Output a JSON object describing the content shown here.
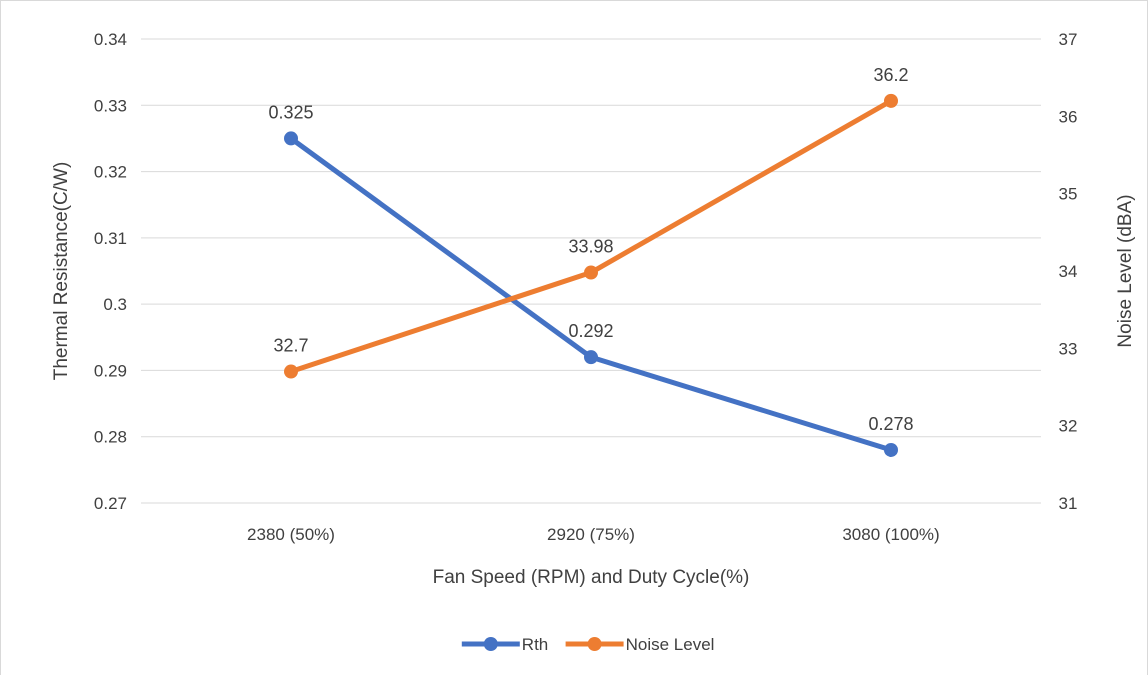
{
  "chart_data": {
    "type": "line",
    "categories": [
      "2380 (50%)",
      "2920 (75%)",
      "3080 (100%)"
    ],
    "xlabel": "Fan Speed (RPM) and Duty Cycle(%)",
    "ylabel": "Thermal Resistance(C/W)",
    "y2label": "Noise Level (dBA)",
    "ylim": [
      0.27,
      0.34
    ],
    "y_ticks": [
      "0.27",
      "0.28",
      "0.29",
      "0.3",
      "0.31",
      "0.32",
      "0.33",
      "0.34"
    ],
    "y2lim": [
      31,
      37
    ],
    "y2_ticks": [
      "31",
      "32",
      "33",
      "34",
      "35",
      "36",
      "37"
    ],
    "grid": true,
    "legend_position": "bottom",
    "series": [
      {
        "name": "Rth",
        "axis": "left",
        "color": "#4472C4",
        "values": [
          0.325,
          0.292,
          0.278
        ],
        "labels": [
          "0.325",
          "0.292",
          "0.278"
        ]
      },
      {
        "name": "Noise Level",
        "axis": "right",
        "color": "#ED7D31",
        "values": [
          32.7,
          33.98,
          36.2
        ],
        "labels": [
          "32.7",
          "33.98",
          "36.2"
        ]
      }
    ]
  }
}
